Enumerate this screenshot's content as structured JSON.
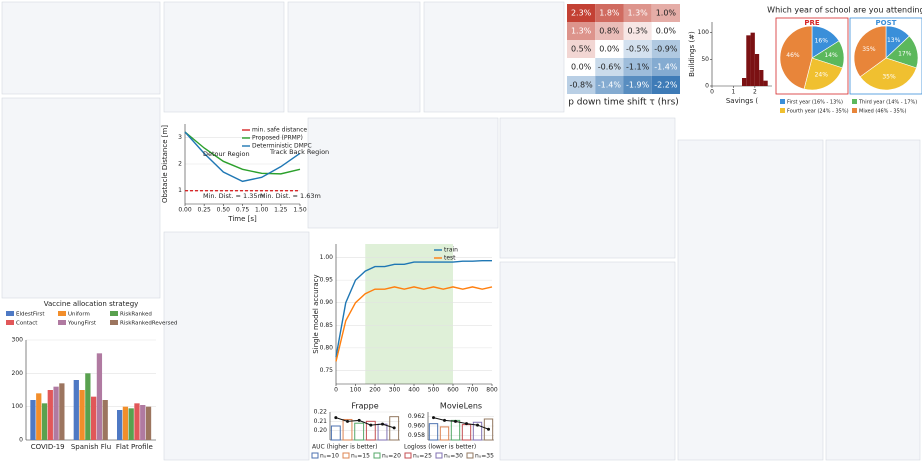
{
  "chart_data": [
    {
      "type": "heatmap",
      "x_label": "p down time shift τ (hrs)",
      "values": [
        [
          2.3,
          1.8,
          1.3,
          1.0
        ],
        [
          1.3,
          0.8,
          0.3,
          0.0
        ],
        [
          0.5,
          0.0,
          -0.5,
          -0.9
        ],
        [
          0.0,
          -0.6,
          -1.1,
          -1.4
        ],
        [
          -0.8,
          -1.4,
          -1.9,
          -2.2
        ]
      ],
      "value_labels": [
        [
          "2.3%",
          "1.8%",
          "1.3%",
          "1.0%"
        ],
        [
          "1.3%",
          "0.8%",
          "0.3%",
          "0.0%"
        ],
        [
          "0.5%",
          "0.0%",
          "-0.5%",
          "-0.9%"
        ],
        [
          "0.0%",
          "-0.6%",
          "-1.1%",
          "-1.4%"
        ],
        [
          "-0.8%",
          "-1.4%",
          "-1.9%",
          "-2.2%"
        ]
      ]
    },
    {
      "type": "histogram",
      "x_label": "Savings (",
      "y_label": "Buildings (#)",
      "color": "#7b1113",
      "bins": [
        1.4,
        1.6,
        1.8,
        2.0,
        2.2,
        2.4,
        2.6
      ],
      "values": [
        15,
        95,
        100,
        60,
        30,
        10
      ],
      "xlim": [
        0,
        2.8
      ],
      "xticks": [
        0,
        1,
        2
      ],
      "ylim": [
        0,
        120
      ],
      "yticks": [
        0,
        50,
        100
      ]
    },
    {
      "type": "pie",
      "title": "Which year of school are you attending?",
      "categories": [
        "First year (16% - 13%)",
        "Third year (14% - 17%)",
        "Fourth year (24% - 35%)",
        "Mixed (46% - 35%)"
      ],
      "colors": [
        "#3a8fd9",
        "#5cb85c",
        "#f0c030",
        "#e8853a"
      ],
      "pies": [
        {
          "name": "PRE",
          "values": [
            16,
            14,
            24,
            46
          ],
          "value_labels": [
            "16%",
            "14%",
            "24%",
            "46%"
          ]
        },
        {
          "name": "POST",
          "values": [
            13,
            17,
            35,
            35
          ],
          "value_labels": [
            "13%",
            "17%",
            "35%",
            "35%"
          ]
        }
      ]
    },
    {
      "type": "line",
      "x_label": "Time [s]",
      "y_label": "Obstacle Distance [m]",
      "x": [
        0,
        0.25,
        0.5,
        0.75,
        1.0,
        1.25,
        1.5
      ],
      "xlim": [
        0,
        1.5
      ],
      "xticks": [
        {
          "value": 0,
          "label": "0.00"
        },
        0.25,
        {
          "value": 0.5,
          "label": "0.50"
        },
        0.75,
        {
          "value": 1,
          "label": "1.00"
        },
        1.25,
        {
          "value": 1.5,
          "label": "1.50"
        }
      ],
      "ylim": [
        0.5,
        3.5
      ],
      "yticks": [
        1,
        2,
        3
      ],
      "series": [
        {
          "name": "min. safe distance",
          "color": "#d62728",
          "dashed": true,
          "values": [
            1,
            1,
            1,
            1,
            1,
            1,
            1
          ]
        },
        {
          "name": "Proposed (PRMP)",
          "color": "#2ca02c",
          "values": [
            3.2,
            2.6,
            2.1,
            1.8,
            1.65,
            1.63,
            1.8
          ]
        },
        {
          "name": "Deterministic DMPC",
          "color": "#1f77b4",
          "values": [
            3.2,
            2.4,
            1.7,
            1.35,
            1.5,
            1.9,
            2.4
          ]
        }
      ],
      "annotations": [
        "Detour Region",
        "Track Back Region",
        "Min. Dist. = 1.35m",
        "Min. Dist. = 1.63m"
      ]
    },
    {
      "type": "grouped_bar",
      "title": "Vaccine allocation strategy",
      "categories": [
        "COVID-19",
        "Spanish Flu",
        "Flat Profile"
      ],
      "ylim": [
        0,
        300
      ],
      "yticks": [
        0,
        100,
        200,
        300
      ],
      "series": [
        {
          "name": "EldestFirst",
          "color": "#4e79c4",
          "values": [
            120,
            180,
            90
          ]
        },
        {
          "name": "Uniform",
          "color": "#f28e2b",
          "values": [
            140,
            150,
            100
          ]
        },
        {
          "name": "RiskRanked",
          "color": "#59a14f",
          "values": [
            110,
            200,
            95
          ]
        },
        {
          "name": "Contact",
          "color": "#e15759",
          "values": [
            150,
            130,
            110
          ]
        },
        {
          "name": "YoungFirst",
          "color": "#b07aa1",
          "values": [
            160,
            260,
            105
          ]
        },
        {
          "name": "RiskRankedReversed",
          "color": "#9c755f",
          "values": [
            170,
            120,
            100
          ]
        }
      ]
    },
    {
      "type": "line",
      "y_label": "Single model accuracy",
      "x": [
        0,
        50,
        100,
        150,
        200,
        250,
        300,
        350,
        400,
        450,
        500,
        550,
        600,
        650,
        700,
        750,
        800
      ],
      "xlim": [
        0,
        800
      ],
      "xticks": [
        0,
        100,
        200,
        300,
        400,
        500,
        600,
        700,
        800
      ],
      "ylim": [
        0.72,
        1.03
      ],
      "yticks": [
        0.75,
        {
          "value": 0.8,
          "label": "0.80"
        },
        0.85,
        {
          "value": 0.9,
          "label": "0.90"
        },
        0.95,
        {
          "value": 1,
          "label": "1.00"
        }
      ],
      "highlight_range": [
        150,
        600
      ],
      "series": [
        {
          "name": "train",
          "color": "#1f77b4",
          "values": [
            0.78,
            0.9,
            0.95,
            0.97,
            0.98,
            0.98,
            0.985,
            0.985,
            0.99,
            0.99,
            0.99,
            0.99,
            0.99,
            0.992,
            0.992,
            0.993,
            0.993
          ]
        },
        {
          "name": "test",
          "color": "#ff7f0e",
          "values": [
            0.77,
            0.86,
            0.9,
            0.92,
            0.93,
            0.93,
            0.935,
            0.93,
            0.935,
            0.93,
            0.935,
            0.93,
            0.935,
            0.93,
            0.935,
            0.93,
            0.935
          ]
        }
      ]
    },
    {
      "type": "bar_line",
      "title": "Frappe",
      "categories": [
        "nᵤ=10",
        "nᵤ=15",
        "nᵤ=20",
        "nᵤ=25",
        "nᵤ=30",
        "nᵤ=35"
      ],
      "colors": [
        "#4c72b0",
        "#dd8452",
        "#55a868",
        "#c44e52",
        "#8172b3",
        "#937860"
      ],
      "ylim": [
        0.19,
        0.22
      ],
      "yticks": [
        {
          "value": 0.2,
          "label": "0.20"
        },
        0.21,
        0.22
      ],
      "series": [
        {
          "name": "AUC (higher is better)",
          "values": [
            0.205,
            0.212,
            0.208,
            0.21,
            0.207,
            0.215
          ]
        },
        {
          "name": "Logloss (lower is better)",
          "values": [
            0.214,
            0.21,
            0.211,
            0.206,
            0.207,
            0.203
          ]
        }
      ]
    },
    {
      "type": "bar_line",
      "title": "MovieLens",
      "colors": [
        "#4c72b0",
        "#dd8452",
        "#55a868",
        "#c44e52",
        "#8172b3",
        "#937860"
      ],
      "ylim": [
        0.957,
        0.963
      ],
      "yticks": [
        {
          "value": 0.958,
          "label": "0.958"
        },
        {
          "value": 0.96,
          "label": "0.960"
        },
        {
          "value": 0.962,
          "label": "0.962"
        }
      ],
      "series": [
        {
          "values": [
            0.9605,
            0.9598,
            0.9612,
            0.9603,
            0.9608,
            0.9615
          ]
        },
        {
          "values": [
            0.9618,
            0.9612,
            0.961,
            0.9605,
            0.9602,
            0.9593
          ]
        }
      ]
    }
  ]
}
